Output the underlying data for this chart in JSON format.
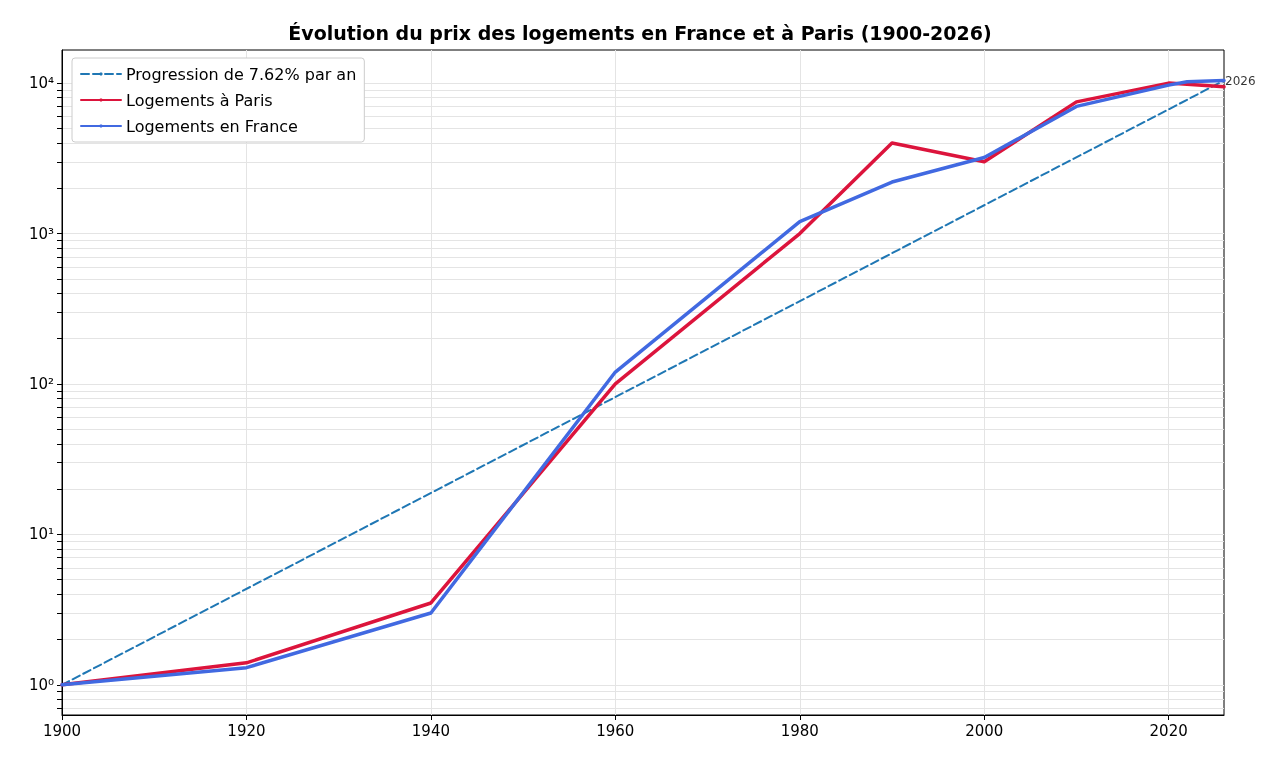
{
  "chart_data": {
    "type": "line",
    "title": "Évolution du prix des logements en France et à Paris (1900-2026)",
    "log": "y",
    "grid": true,
    "legend": "top left",
    "marker": "none",
    "line_style": "solid",
    "xlim": [
      1900,
      2026
    ],
    "xticks": [
      1900,
      1920,
      1940,
      1960,
      1980,
      2000,
      2020
    ],
    "ylim": [
      0.63,
      16600
    ],
    "yticks": [
      {
        "value": 0.7,
        "label": null
      },
      {
        "value": 0.8,
        "label": null
      },
      {
        "value": 0.9,
        "label": null
      },
      {
        "value": 1,
        "label": "10⁰"
      },
      {
        "value": 2,
        "label": null
      },
      {
        "value": 3,
        "label": null
      },
      {
        "value": 4,
        "label": null
      },
      {
        "value": 5,
        "label": null
      },
      {
        "value": 6,
        "label": null
      },
      {
        "value": 7,
        "label": null
      },
      {
        "value": 8,
        "label": null
      },
      {
        "value": 9,
        "label": null
      },
      {
        "value": 10,
        "label": "10¹"
      },
      {
        "value": 20,
        "label": null
      },
      {
        "value": 30,
        "label": null
      },
      {
        "value": 40,
        "label": null
      },
      {
        "value": 50,
        "label": null
      },
      {
        "value": 60,
        "label": null
      },
      {
        "value": 70,
        "label": null
      },
      {
        "value": 80,
        "label": null
      },
      {
        "value": 90,
        "label": null
      },
      {
        "value": 100,
        "label": "10²"
      },
      {
        "value": 200,
        "label": null
      },
      {
        "value": 300,
        "label": null
      },
      {
        "value": 400,
        "label": null
      },
      {
        "value": 500,
        "label": null
      },
      {
        "value": 600,
        "label": null
      },
      {
        "value": 700,
        "label": null
      },
      {
        "value": 800,
        "label": null
      },
      {
        "value": 900,
        "label": null
      },
      {
        "value": 1000,
        "label": "10³"
      },
      {
        "value": 2000,
        "label": null
      },
      {
        "value": 3000,
        "label": null
      },
      {
        "value": 4000,
        "label": null
      },
      {
        "value": 5000,
        "label": null
      },
      {
        "value": 6000,
        "label": null
      },
      {
        "value": 7000,
        "label": null
      },
      {
        "value": 8000,
        "label": null
      },
      {
        "value": 9000,
        "label": null
      },
      {
        "value": 10000,
        "label": "10⁴"
      }
    ],
    "series": [
      {
        "name": "Progression de 7.62% par an",
        "color": "#1f77b4",
        "line_style": "dashed",
        "x": [
          1900,
          2026
        ],
        "values": [
          1,
          10400
        ]
      },
      {
        "name": "Logements à Paris",
        "color": "#dc143c",
        "x": [
          1900,
          1920,
          1940,
          1960,
          1980,
          1990,
          2000,
          2010,
          2020,
          2026
        ],
        "values": [
          1,
          1.4,
          3.5,
          100,
          1000,
          4000,
          3000,
          7500,
          10000,
          9450
        ]
      },
      {
        "name": "Logements en France",
        "color": "#4169e1",
        "x": [
          1900,
          1920,
          1940,
          1960,
          1980,
          1990,
          2000,
          2010,
          2020,
          2022,
          2026
        ],
        "values": [
          1,
          1.3,
          3,
          120,
          1200,
          2200,
          3200,
          7000,
          9700,
          10200,
          10400
        ]
      }
    ],
    "annotations": [
      {
        "text": "2026",
        "x": 2026,
        "y": 10400
      }
    ]
  }
}
